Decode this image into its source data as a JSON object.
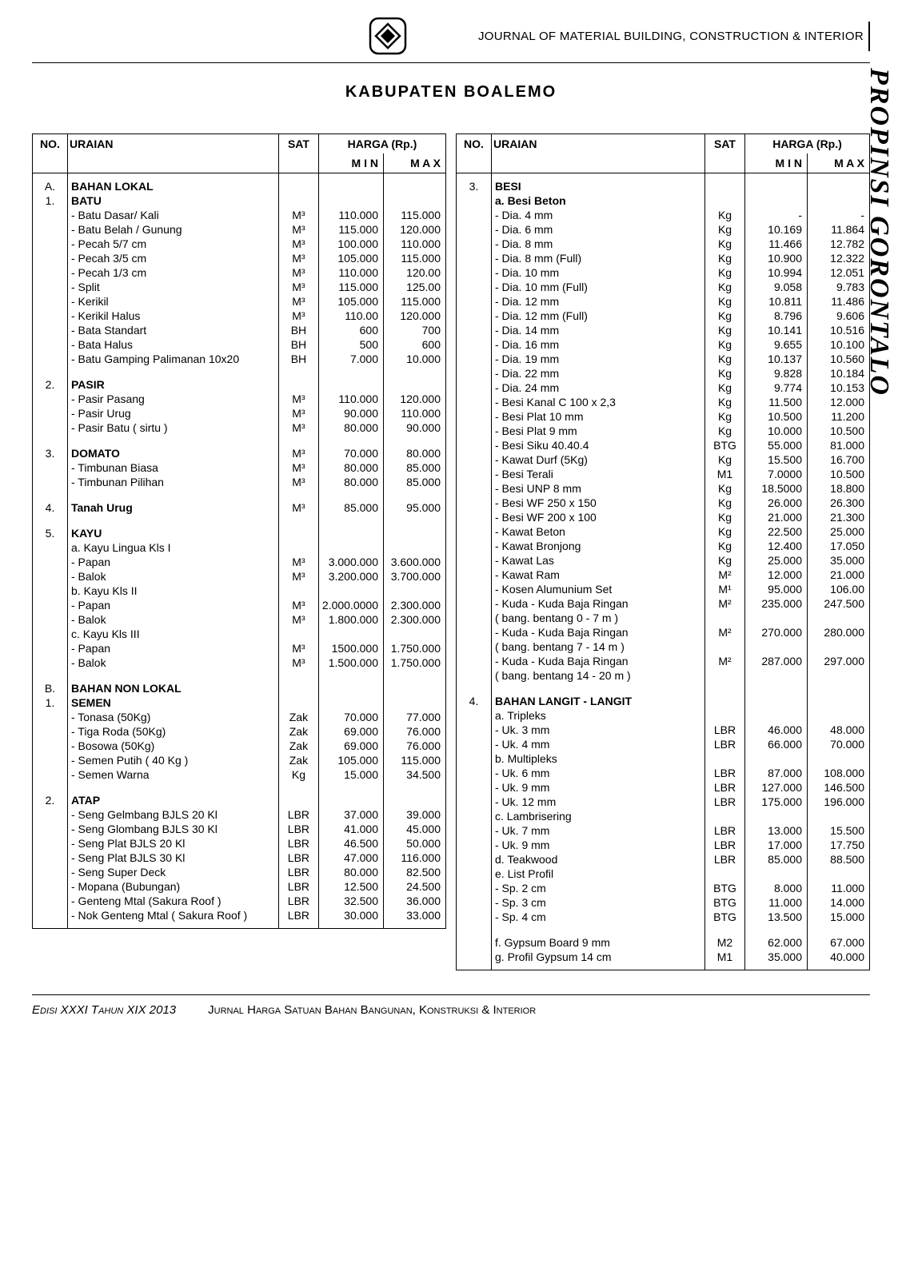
{
  "header": {
    "journal": "JOURNAL OF MATERIAL BUILDING, CONSTRUCTION & INTERIOR"
  },
  "title": "KABUPATEN BOALEMO",
  "side_label": "PROPINSI GORONTALO",
  "table_headers": {
    "no": "NO.",
    "uraian": "URAIAN",
    "sat": "SAT",
    "harga": "HARGA (Rp.)",
    "min": "M I N",
    "max": "M A X"
  },
  "left": [
    {
      "no": "A.",
      "uraian": "BAHAN LOKAL",
      "bold": true
    },
    {
      "no": "1.",
      "uraian": "BATU",
      "bold": true
    },
    {
      "uraian": "- Batu Dasar/ Kali",
      "sat": "M³",
      "min": "110.000",
      "max": "115.000"
    },
    {
      "uraian": "- Batu Belah / Gunung",
      "sat": "M³",
      "min": "115.000",
      "max": "120.000"
    },
    {
      "uraian": "- Pecah 5/7 cm",
      "sat": "M³",
      "min": "100.000",
      "max": "110.000"
    },
    {
      "uraian": "- Pecah 3/5 cm",
      "sat": "M³",
      "min": "105.000",
      "max": "115.000"
    },
    {
      "uraian": "- Pecah 1/3 cm",
      "sat": "M³",
      "min": "110.000",
      "max": "120.00"
    },
    {
      "uraian": "- Split",
      "sat": "M³",
      "min": "115.000",
      "max": "125.00"
    },
    {
      "uraian": "- Kerikil",
      "sat": "M³",
      "min": "105.000",
      "max": "115.000"
    },
    {
      "uraian": "- Kerikil Halus",
      "sat": "M³",
      "min": "110.00",
      "max": "120.000"
    },
    {
      "uraian": "- Bata Standart",
      "sat": "BH",
      "min": "600",
      "max": "700"
    },
    {
      "uraian": "- Bata Halus",
      "sat": "BH",
      "min": "500",
      "max": "600"
    },
    {
      "uraian": "- Batu Gamping Palimanan 10x20",
      "sat": "BH",
      "min": "7.000",
      "max": "10.000"
    },
    {
      "spacer": true
    },
    {
      "no": "2.",
      "uraian": "PASIR",
      "bold": true
    },
    {
      "uraian": "- Pasir Pasang",
      "sat": "M³",
      "min": "110.000",
      "max": "120.000"
    },
    {
      "uraian": "- Pasir Urug",
      "sat": "M³",
      "min": "90.000",
      "max": "110.000"
    },
    {
      "uraian": "- Pasir Batu ( sirtu )",
      "sat": "M³",
      "min": "80.000",
      "max": "90.000"
    },
    {
      "spacer": true
    },
    {
      "no": "3.",
      "uraian": "DOMATO",
      "bold": true,
      "sat": "M³",
      "min": "70.000",
      "max": "80.000"
    },
    {
      "uraian": "- Timbunan Biasa",
      "sat": "M³",
      "min": "80.000",
      "max": "85.000"
    },
    {
      "uraian": "- Timbunan Pilihan",
      "sat": "M³",
      "min": "80.000",
      "max": "85.000"
    },
    {
      "spacer": true
    },
    {
      "no": "4.",
      "uraian": "Tanah Urug",
      "bold": true,
      "sat": "M³",
      "min": "85.000",
      "max": "95.000"
    },
    {
      "spacer": true
    },
    {
      "no": "5.",
      "uraian": "KAYU",
      "bold": true
    },
    {
      "uraian": "a. Kayu Lingua Kls I"
    },
    {
      "uraian": "- Papan",
      "sat": "M³",
      "min": "3.000.000",
      "max": "3.600.000"
    },
    {
      "uraian": "- Balok",
      "sat": "M³",
      "min": "3.200.000",
      "max": "3.700.000"
    },
    {
      "uraian": "b. Kayu Kls II"
    },
    {
      "uraian": "- Papan",
      "sat": "M³",
      "min": "2.000.0000",
      "max": "2.300.000"
    },
    {
      "uraian": "- Balok",
      "sat": "M³",
      "min": "1.800.000",
      "max": "2.300.000"
    },
    {
      "uraian": "c. Kayu Kls III"
    },
    {
      "uraian": "- Papan",
      "sat": "M³",
      "min": "1500.000",
      "max": "1.750.000"
    },
    {
      "uraian": "- Balok",
      "sat": "M³",
      "min": "1.500.000",
      "max": "1.750.000"
    },
    {
      "spacer": true
    },
    {
      "no": "B.",
      "uraian": "BAHAN NON LOKAL",
      "bold": true
    },
    {
      "no": "1.",
      "uraian": "SEMEN",
      "bold": true
    },
    {
      "uraian": "- Tonasa (50Kg)",
      "sat": "Zak",
      "min": "70.000",
      "max": "77.000"
    },
    {
      "uraian": "- Tiga Roda (50Kg)",
      "sat": "Zak",
      "min": "69.000",
      "max": "76.000"
    },
    {
      "uraian": "- Bosowa (50Kg)",
      "sat": "Zak",
      "min": "69.000",
      "max": "76.000"
    },
    {
      "uraian": "- Semen Putih ( 40 Kg )",
      "sat": "Zak",
      "min": "105.000",
      "max": "115.000"
    },
    {
      "uraian": "- Semen Warna",
      "sat": "Kg",
      "min": "15.000",
      "max": "34.500"
    },
    {
      "spacer": true
    },
    {
      "no": "2.",
      "uraian": "ATAP",
      "bold": true
    },
    {
      "uraian": "- Seng Gelmbang BJLS 20 Kl",
      "sat": "LBR",
      "min": "37.000",
      "max": "39.000"
    },
    {
      "uraian": "- Seng Glombang BJLS 30 Kl",
      "sat": "LBR",
      "min": "41.000",
      "max": "45.000"
    },
    {
      "uraian": "- Seng Plat BJLS 20 Kl",
      "sat": "LBR",
      "min": "46.500",
      "max": "50.000"
    },
    {
      "uraian": "- Seng Plat BJLS 30 Kl",
      "sat": "LBR",
      "min": "47.000",
      "max": "116.000"
    },
    {
      "uraian": "- Seng Super Deck",
      "sat": "LBR",
      "min": "80.000",
      "max": "82.500"
    },
    {
      "uraian": "- Mopana (Bubungan)",
      "sat": "LBR",
      "min": "12.500",
      "max": "24.500"
    },
    {
      "uraian": "- Genteng Mtal (Sakura Roof )",
      "sat": "LBR",
      "min": "32.500",
      "max": "36.000"
    },
    {
      "uraian": "- Nok Genteng Mtal ( Sakura Roof )",
      "sat": "LBR",
      "min": "30.000",
      "max": "33.000"
    }
  ],
  "right": [
    {
      "no": "3.",
      "uraian": "BESI",
      "bold": true
    },
    {
      "uraian": "a. Besi Beton",
      "bold": true
    },
    {
      "uraian": "- Dia. 4 mm",
      "sat": "Kg",
      "min": "-",
      "max": "-"
    },
    {
      "uraian": "- Dia. 6 mm",
      "sat": "Kg",
      "min": "10.169",
      "max": "11.864"
    },
    {
      "uraian": "- Dia. 8 mm",
      "sat": "Kg",
      "min": "11.466",
      "max": "12.782"
    },
    {
      "uraian": "- Dia. 8 mm (Full)",
      "sat": "Kg",
      "min": "10.900",
      "max": "12.322"
    },
    {
      "uraian": "- Dia. 10 mm",
      "sat": "Kg",
      "min": "10.994",
      "max": "12.051"
    },
    {
      "uraian": "- Dia. 10 mm (Full)",
      "sat": "Kg",
      "min": "9.058",
      "max": "9.783"
    },
    {
      "uraian": "- Dia. 12 mm",
      "sat": "Kg",
      "min": "10.811",
      "max": "11.486"
    },
    {
      "uraian": "- Dia. 12 mm (Full)",
      "sat": "Kg",
      "min": "8.796",
      "max": "9.606"
    },
    {
      "uraian": "- Dia. 14 mm",
      "sat": "Kg",
      "min": "10.141",
      "max": "10.516"
    },
    {
      "uraian": "- Dia. 16 mm",
      "sat": "Kg",
      "min": "9.655",
      "max": "10.100"
    },
    {
      "uraian": "- Dia. 19 mm",
      "sat": "Kg",
      "min": "10.137",
      "max": "10.560"
    },
    {
      "uraian": "- Dia. 22 mm",
      "sat": "Kg",
      "min": "9.828",
      "max": "10.184"
    },
    {
      "uraian": "- Dia. 24 mm",
      "sat": "Kg",
      "min": "9.774",
      "max": "10.153"
    },
    {
      "uraian": "- Besi Kanal C 100 x 2,3",
      "sat": "Kg",
      "min": "11.500",
      "max": "12.000"
    },
    {
      "uraian": "- Besi Plat 10 mm",
      "sat": "Kg",
      "min": "10.500",
      "max": "11.200"
    },
    {
      "uraian": "- Besi Plat 9 mm",
      "sat": "Kg",
      "min": "10.000",
      "max": "10.500"
    },
    {
      "uraian": "- Besi Siku 40.40.4",
      "sat": "BTG",
      "min": "55.000",
      "max": "81.000"
    },
    {
      "uraian": "- Kawat Durf (5Kg)",
      "sat": "Kg",
      "min": "15.500",
      "max": "16.700"
    },
    {
      "uraian": "- Besi Terali",
      "sat": "M1",
      "min": "7.0000",
      "max": "10.500"
    },
    {
      "uraian": "- Besi UNP 8 mm",
      "sat": "Kg",
      "min": "18.5000",
      "max": "18.800"
    },
    {
      "uraian": "- Besi WF 250 x 150",
      "sat": "Kg",
      "min": "26.000",
      "max": "26.300"
    },
    {
      "uraian": "- Besi WF 200 x 100",
      "sat": "Kg",
      "min": "21.000",
      "max": "21.300"
    },
    {
      "uraian": "- Kawat Beton",
      "sat": "Kg",
      "min": "22.500",
      "max": "25.000"
    },
    {
      "uraian": "- Kawat Bronjong",
      "sat": "Kg",
      "min": "12.400",
      "max": "17.050"
    },
    {
      "uraian": "- Kawat Las",
      "sat": "Kg",
      "min": "25.000",
      "max": "35.000"
    },
    {
      "uraian": "- Kawat Ram",
      "sat": "M²",
      "min": "12.000",
      "max": "21.000"
    },
    {
      "uraian": "- Kosen Alumunium Set",
      "sat": "M¹",
      "min": "95.000",
      "max": "106.00"
    },
    {
      "uraian": "- Kuda - Kuda Baja Ringan",
      "sat": "M²",
      "min": "235.000",
      "max": "247.500"
    },
    {
      "uraian": "( bang. bentang 0 - 7 m )"
    },
    {
      "uraian": "- Kuda - Kuda Baja Ringan",
      "sat": "M²",
      "min": "270.000",
      "max": "280.000"
    },
    {
      "uraian": "( bang. bentang 7 - 14 m )"
    },
    {
      "uraian": "- Kuda - Kuda Baja Ringan",
      "sat": "M²",
      "min": "287.000",
      "max": "297.000"
    },
    {
      "uraian": "( bang. bentang 14 - 20 m )"
    },
    {
      "spacer": true
    },
    {
      "no": "4.",
      "uraian": "BAHAN LANGIT - LANGIT",
      "bold": true
    },
    {
      "uraian": "a. Tripleks"
    },
    {
      "uraian": "- Uk. 3 mm",
      "sat": "LBR",
      "min": "46.000",
      "max": "48.000"
    },
    {
      "uraian": "- Uk. 4 mm",
      "sat": "LBR",
      "min": "66.000",
      "max": "70.000"
    },
    {
      "uraian": "b. Multipleks"
    },
    {
      "uraian": "- Uk. 6 mm",
      "sat": "LBR",
      "min": "87.000",
      "max": "108.000"
    },
    {
      "uraian": "- Uk. 9 mm",
      "sat": "LBR",
      "min": "127.000",
      "max": "146.500"
    },
    {
      "uraian": "- Uk. 12 mm",
      "sat": "LBR",
      "min": "175.000",
      "max": "196.000"
    },
    {
      "uraian": "c. Lambrisering"
    },
    {
      "uraian": "- Uk. 7 mm",
      "sat": "LBR",
      "min": "13.000",
      "max": "15.500"
    },
    {
      "uraian": "- Uk. 9 mm",
      "sat": "LBR",
      "min": "17.000",
      "max": "17.750"
    },
    {
      "uraian": "d. Teakwood",
      "sat": "LBR",
      "min": "85.000",
      "max": "88.500"
    },
    {
      "uraian": "e. List Profil"
    },
    {
      "uraian": "- Sp. 2 cm",
      "sat": "BTG",
      "min": "8.000",
      "max": "11.000"
    },
    {
      "uraian": "- Sp. 3 cm",
      "sat": "BTG",
      "min": "11.000",
      "max": "14.000"
    },
    {
      "uraian": "- Sp. 4 cm",
      "sat": "BTG",
      "min": "13.500",
      "max": "15.000"
    },
    {
      "spacer": true
    },
    {
      "uraian": "f. Gypsum Board 9 mm",
      "sat": "M2",
      "min": "62.000",
      "max": "67.000"
    },
    {
      "uraian": "g. Profil Gypsum 14 cm",
      "sat": "M1",
      "min": "35.000",
      "max": "40.000"
    }
  ],
  "footer": {
    "edition": "Edisi XXXI Tahun XIX 2013",
    "subtitle": "Jurnal Harga Satuan Bahan Bangunan, Konstruksi & Interior"
  }
}
